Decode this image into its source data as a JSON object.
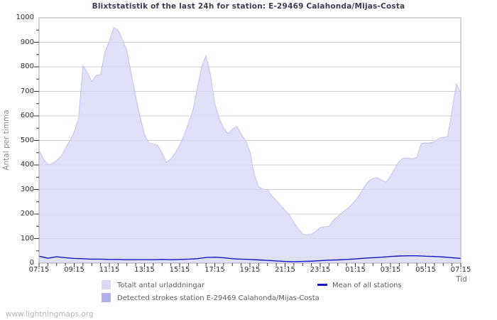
{
  "title": "Blixtstatistik of the last 24h for station: E-29469 Calahonda/Mijas-Costa",
  "watermark": "www.lightningmaps.org",
  "colors": {
    "grid": "#cdcdcd",
    "plot_border": "#a9a9a9",
    "tick": "#333333",
    "area_fill": "#d9d9f6",
    "area_edge": "#c2c2ee",
    "detected_swatch": "#b0b0ec",
    "mean_line": "#1717c9",
    "title_text": "#3b3b55",
    "background": "#ffffff"
  },
  "chart_data": {
    "type": "area",
    "title": "Blixtstatistik of the last 24h for station: E-29469 Calahonda/Mijas-Costa",
    "legend_position": "bottom",
    "x_axis": {
      "label": "Tid",
      "tick_labels": [
        "07:15",
        "09:15",
        "11:15",
        "13:15",
        "15:15",
        "17:15",
        "19:15",
        "21:15",
        "23:15",
        "01:15",
        "03:15",
        "05:15",
        "07:15"
      ],
      "span_hours": 24,
      "major_tick_minutes": 120,
      "minor_tick_minutes": 30
    },
    "y_axis": {
      "label": "Antal per timma",
      "min": 0,
      "max": 1000,
      "tick_step": 100,
      "minor_tick_step": 50,
      "tick_labels": [
        0,
        100,
        200,
        300,
        400,
        500,
        600,
        700,
        800,
        900,
        1000
      ],
      "grid": true
    },
    "series": [
      {
        "name": "Totalt antal urladdningar",
        "type": "area",
        "color": "#d9d9f6",
        "start": "07:15",
        "sample_interval_minutes": 15,
        "values": [
          460,
          425,
          402,
          405,
          418,
          435,
          468,
          498,
          535,
          590,
          805,
          775,
          740,
          765,
          768,
          860,
          905,
          960,
          950,
          910,
          865,
          770,
          680,
          595,
          525,
          490,
          485,
          480,
          450,
          410,
          425,
          450,
          480,
          520,
          570,
          620,
          710,
          800,
          845,
          770,
          650,
          590,
          550,
          528,
          545,
          558,
          525,
          500,
          455,
          360,
          310,
          302,
          298,
          275,
          255,
          235,
          215,
          195,
          165,
          140,
          118,
          115,
          118,
          130,
          145,
          148,
          150,
          175,
          190,
          205,
          220,
          235,
          255,
          280,
          310,
          335,
          345,
          348,
          338,
          330,
          355,
          385,
          415,
          428,
          428,
          425,
          430,
          488,
          490,
          490,
          495,
          510,
          512,
          515,
          620,
          730,
          695
        ]
      },
      {
        "name": "Detected strokes station E-29469 Calahonda/Mijas-Costa",
        "type": "area",
        "color": "#b0b0ec",
        "values": null,
        "note": "no visible area in plot — values at or near 0 for the whole period"
      },
      {
        "name": "Mean of all stations",
        "type": "line",
        "color": "#1717c9",
        "start": "07:15",
        "sample_interval_minutes": 30,
        "values": [
          28,
          20,
          26,
          22,
          19,
          18,
          16,
          16,
          15,
          15,
          14,
          14,
          14,
          14,
          15,
          14,
          15,
          16,
          18,
          23,
          24,
          22,
          18,
          16,
          15,
          13,
          11,
          9,
          7,
          6,
          7,
          8,
          10,
          12,
          13,
          15,
          17,
          20,
          22,
          24,
          27,
          29,
          30,
          30,
          28,
          27,
          25,
          22,
          19
        ]
      }
    ]
  }
}
